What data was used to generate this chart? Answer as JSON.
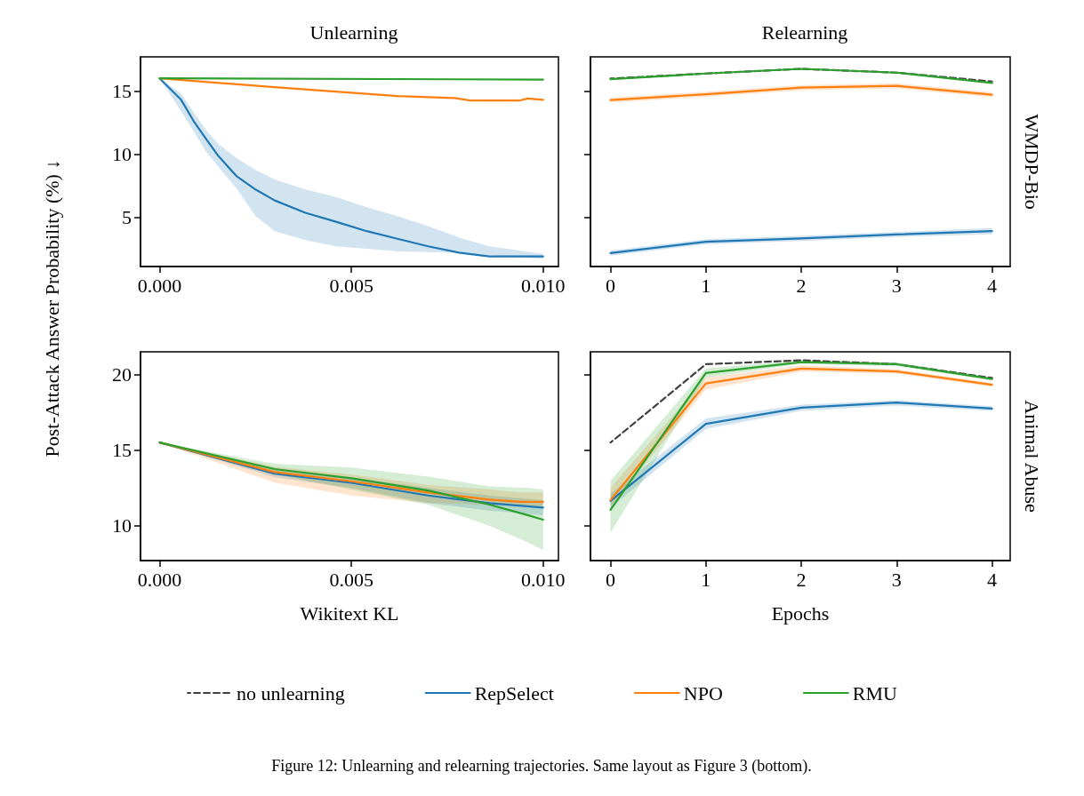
{
  "chart_data": [
    {
      "type": "line",
      "title": "Unlearning",
      "ylabel": "Post-Attack Answer Probability (%) ↓",
      "annotations": [
        "Figure 12: Unlearning and relearning trajectories. Same layout as Figure 3 (bottom)."
      ],
      "xlim": [
        -0.0005,
        0.0104
      ],
      "xticks": [
        {
          "value": 0,
          "label": "0.000"
        },
        {
          "value": 0.005,
          "label": "0.005"
        },
        {
          "value": 0.01,
          "label": "0.010"
        }
      ],
      "ylim": [
        1.1,
        17.7
      ],
      "yticks": [
        5,
        10,
        15
      ],
      "grid": false,
      "marker": "none",
      "series": [
        {
          "color": "#1f77b4",
          "x": [
            0,
            0.00056,
            0.00089,
            0.00121,
            0.00153,
            0.002,
            0.0025,
            0.003,
            0.0038,
            0.0046,
            0.0054,
            0.0062,
            0.007,
            0.0078,
            0.0086,
            0.01
          ],
          "values": [
            16,
            14.3,
            12.6,
            11.2,
            9.85,
            8.27,
            7.2,
            6.33,
            5.36,
            4.64,
            3.9,
            3.3,
            2.7,
            2.2,
            1.9,
            1.9
          ],
          "lower": [
            16,
            13.4,
            11.8,
            10.2,
            9.0,
            7.3,
            5.1,
            3.9,
            3.2,
            2.7,
            2.5,
            2.3,
            2.25,
            2.2,
            2.0,
            1.7
          ],
          "upper": [
            16,
            14.8,
            13.3,
            11.9,
            10.8,
            9.7,
            8.75,
            8.0,
            7.2,
            6.6,
            5.8,
            5.1,
            4.3,
            3.4,
            2.7,
            2.1
          ]
        },
        {
          "color": "#ff7f0e",
          "x": [
            0,
            0.003,
            0.0062,
            0.0077,
            0.0081,
            0.0094,
            0.0096,
            0.01
          ],
          "values": [
            16,
            15.3,
            14.6,
            14.44,
            14.25,
            14.25,
            14.4,
            14.3
          ]
        },
        {
          "color": "#2ca02c",
          "x": [
            0,
            0.01
          ],
          "values": [
            16,
            15.9
          ]
        }
      ]
    },
    {
      "type": "line",
      "title": "Relearning",
      "annotations": [
        "WMDP-Bio"
      ],
      "x": [
        0,
        1,
        2,
        3,
        4
      ],
      "xlim": [
        -0.21,
        4.19
      ],
      "xticks": [
        0,
        1,
        2,
        3,
        4
      ],
      "ylim": [
        1.1,
        17.7
      ],
      "yticks": [
        5,
        10,
        15
      ],
      "tick_labels": "x",
      "grid": false,
      "marker": "none",
      "series": [
        {
          "color": "#404040",
          "line_style": "dashed",
          "values": [
            15.98,
            16.38,
            16.75,
            16.45,
            15.75
          ]
        },
        {
          "color": "#1f77b4",
          "values": [
            2.17,
            3.06,
            3.32,
            3.64,
            3.9
          ],
          "lower": [
            1.97,
            2.86,
            3.12,
            3.44,
            3.65
          ],
          "upper": [
            2.37,
            3.26,
            3.52,
            3.84,
            4.15
          ]
        },
        {
          "color": "#ff7f0e",
          "values": [
            14.28,
            14.74,
            15.26,
            15.4,
            14.7
          ],
          "lower": [
            14.08,
            14.54,
            15.06,
            15.2,
            14.5
          ],
          "upper": [
            14.48,
            14.94,
            15.46,
            15.6,
            14.9
          ]
        },
        {
          "color": "#2ca02c",
          "values": [
            15.93,
            16.38,
            16.75,
            16.45,
            15.63
          ]
        }
      ]
    },
    {
      "type": "line",
      "xlabel": "Wikitext KL",
      "x": [
        0,
        0.003,
        0.005,
        0.007,
        0.0086,
        0.01
      ],
      "xlim": [
        -0.0005,
        0.0104
      ],
      "xticks": [
        {
          "value": 0,
          "label": "0.000"
        },
        {
          "value": 0.005,
          "label": "0.005"
        },
        {
          "value": 0.01,
          "label": "0.010"
        }
      ],
      "ylim": [
        7.7,
        21.5
      ],
      "yticks": [
        10,
        15,
        20
      ],
      "grid": false,
      "marker": "none",
      "series": [
        {
          "color": "#1f77b4",
          "values": [
            15.5,
            13.45,
            12.84,
            12.0,
            11.5,
            11.2
          ],
          "lower": [
            15.5,
            13.2,
            12.5,
            11.5,
            11.0,
            10.7
          ],
          "upper": [
            15.5,
            13.7,
            13.2,
            12.5,
            12.0,
            11.7
          ]
        },
        {
          "color": "#ff7f0e",
          "x": [
            0,
            0.003,
            0.005,
            0.007,
            0.0086,
            0.0094,
            0.01
          ],
          "values": [
            15.5,
            13.55,
            12.94,
            12.2,
            11.73,
            11.58,
            11.58
          ],
          "lower": [
            15.5,
            12.85,
            12.0,
            11.5,
            11.4,
            11.3,
            11.3
          ],
          "upper": [
            15.5,
            13.9,
            13.4,
            12.7,
            12.4,
            12.2,
            12.2
          ]
        },
        {
          "color": "#2ca02c",
          "x": [
            0,
            0.003,
            0.005,
            0.007,
            0.0086,
            0.0096,
            0.01
          ],
          "values": [
            15.5,
            13.75,
            13.14,
            12.33,
            11.4,
            10.7,
            10.4
          ],
          "lower": [
            15.5,
            13.4,
            12.4,
            11.4,
            10.0,
            8.9,
            8.4
          ],
          "upper": [
            15.5,
            14.1,
            13.85,
            13.25,
            12.6,
            12.5,
            12.4
          ]
        }
      ]
    },
    {
      "type": "line",
      "xlabel": "Epochs",
      "annotations": [
        "Animal Abuse"
      ],
      "x": [
        0,
        1,
        2,
        3,
        4
      ],
      "xlim": [
        -0.21,
        4.19
      ],
      "xticks": [
        0,
        1,
        2,
        3,
        4
      ],
      "ylim": [
        7.7,
        21.5
      ],
      "yticks": [
        10,
        15,
        20
      ],
      "tick_labels": "x",
      "grid": false,
      "marker": "none",
      "legend": "bottom",
      "series": [
        {
          "name": "no unlearning",
          "color": "#404040",
          "line_style": "dashed",
          "values": [
            15.5,
            20.68,
            20.94,
            20.68,
            19.77
          ]
        },
        {
          "name": "RepSelect",
          "color": "#1f77b4",
          "values": [
            11.64,
            16.74,
            17.81,
            18.14,
            17.75
          ],
          "lower": [
            11.2,
            16.4,
            17.6,
            17.95,
            17.6
          ],
          "upper": [
            12.1,
            17.1,
            18.0,
            18.3,
            17.9
          ]
        },
        {
          "name": "NPO",
          "color": "#ff7f0e",
          "values": [
            11.7,
            19.41,
            20.39,
            20.2,
            19.32
          ],
          "lower": [
            11.3,
            19.0,
            20.2,
            20.05,
            19.2
          ],
          "upper": [
            12.5,
            19.8,
            20.6,
            20.35,
            19.45
          ]
        },
        {
          "name": "RMU",
          "color": "#2ca02c",
          "values": [
            11.05,
            20.1,
            20.82,
            20.68,
            19.7
          ],
          "lower": [
            9.55,
            19.8,
            20.7,
            20.55,
            19.6
          ],
          "upper": [
            12.97,
            20.4,
            20.95,
            20.8,
            19.8
          ]
        }
      ]
    }
  ]
}
